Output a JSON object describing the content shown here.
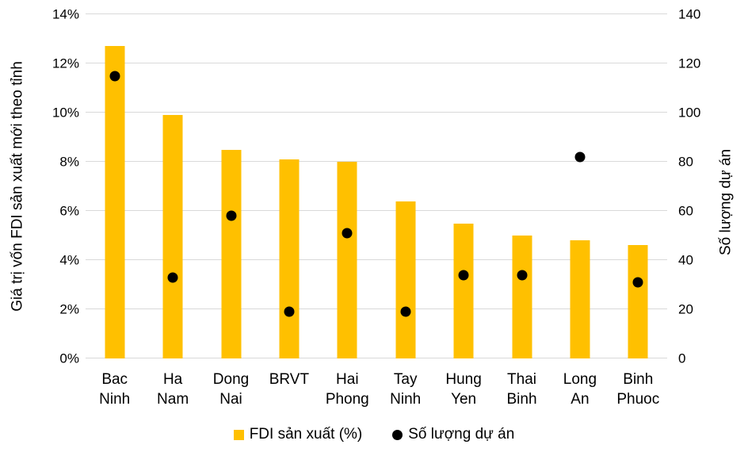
{
  "chart_data": {
    "type": "bar",
    "subtype": "combo-bar-scatter-dual-axis",
    "categories": [
      "Bac Ninh",
      "Ha Nam",
      "Dong Nai",
      "BRVT",
      "Hai Phong",
      "Tay Ninh",
      "Hung Yen",
      "Thai Binh",
      "Long An",
      "Binh Phuoc"
    ],
    "series": [
      {
        "name": "FDI sản xuất (%)",
        "type": "bar",
        "axis": "left",
        "color": "#FFC000",
        "values": [
          12.7,
          9.9,
          8.5,
          8.1,
          8.0,
          6.4,
          5.5,
          5.0,
          4.8,
          4.6
        ]
      },
      {
        "name": "Số lượng dự án",
        "type": "scatter",
        "axis": "right",
        "color": "#000000",
        "values": [
          115,
          33,
          58,
          19,
          51,
          19,
          34,
          34,
          82,
          31
        ]
      }
    ],
    "left_axis": {
      "label": "Giá trị vốn FDI sản xuất mới theo tỉnh",
      "min": 0,
      "max": 14,
      "step": 2,
      "ticks": [
        "0%",
        "2%",
        "4%",
        "6%",
        "8%",
        "10%",
        "12%",
        "14%"
      ]
    },
    "right_axis": {
      "label": "Số lượng dự án",
      "min": 0,
      "max": 140,
      "step": 20,
      "ticks": [
        "0",
        "20",
        "40",
        "60",
        "80",
        "100",
        "120",
        "140"
      ]
    },
    "grid": true,
    "gridline_color": "#D9D9D9",
    "text_color": "#000000",
    "background": "#FFFFFF",
    "legend_position": "bottom"
  }
}
